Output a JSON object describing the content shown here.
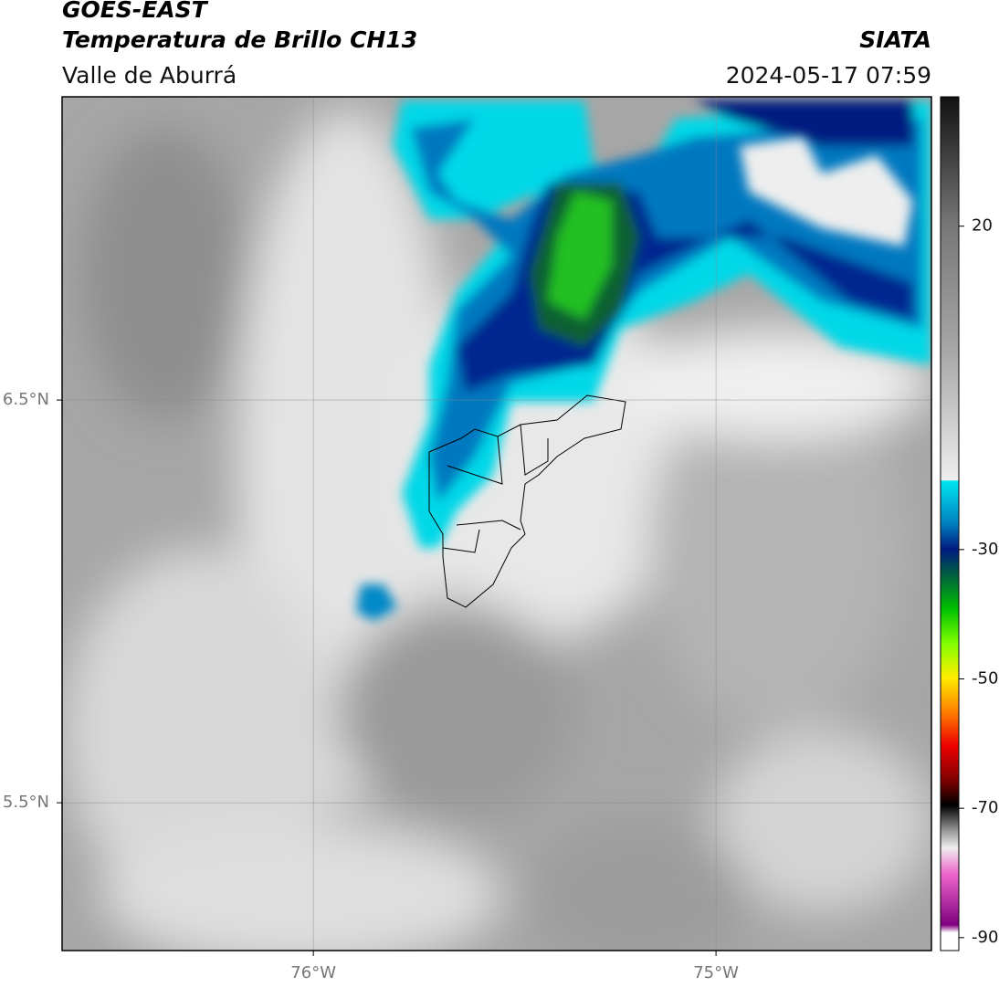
{
  "header": {
    "title": "GOES-EAST",
    "subtitle": "Temperatura de Brillo CH13",
    "region": "Valle de Aburrá",
    "source": "SIATA",
    "datetime": "2024-05-17 07:59"
  },
  "map": {
    "lon_range": [
      -76.624,
      -74.465
    ],
    "lat_range": [
      5.133,
      7.253
    ],
    "lon_ticks": [
      {
        "value": -76,
        "label": "76°W"
      },
      {
        "value": -75,
        "label": "75°W"
      }
    ],
    "lat_ticks": [
      {
        "value": 6.5,
        "label": "6.5°N"
      },
      {
        "value": 5.5,
        "label": "5.5°N"
      }
    ]
  },
  "colorbar": {
    "range": [
      -92,
      40
    ],
    "ticks": [
      20,
      -30,
      -50,
      -70,
      -90
    ]
  }
}
